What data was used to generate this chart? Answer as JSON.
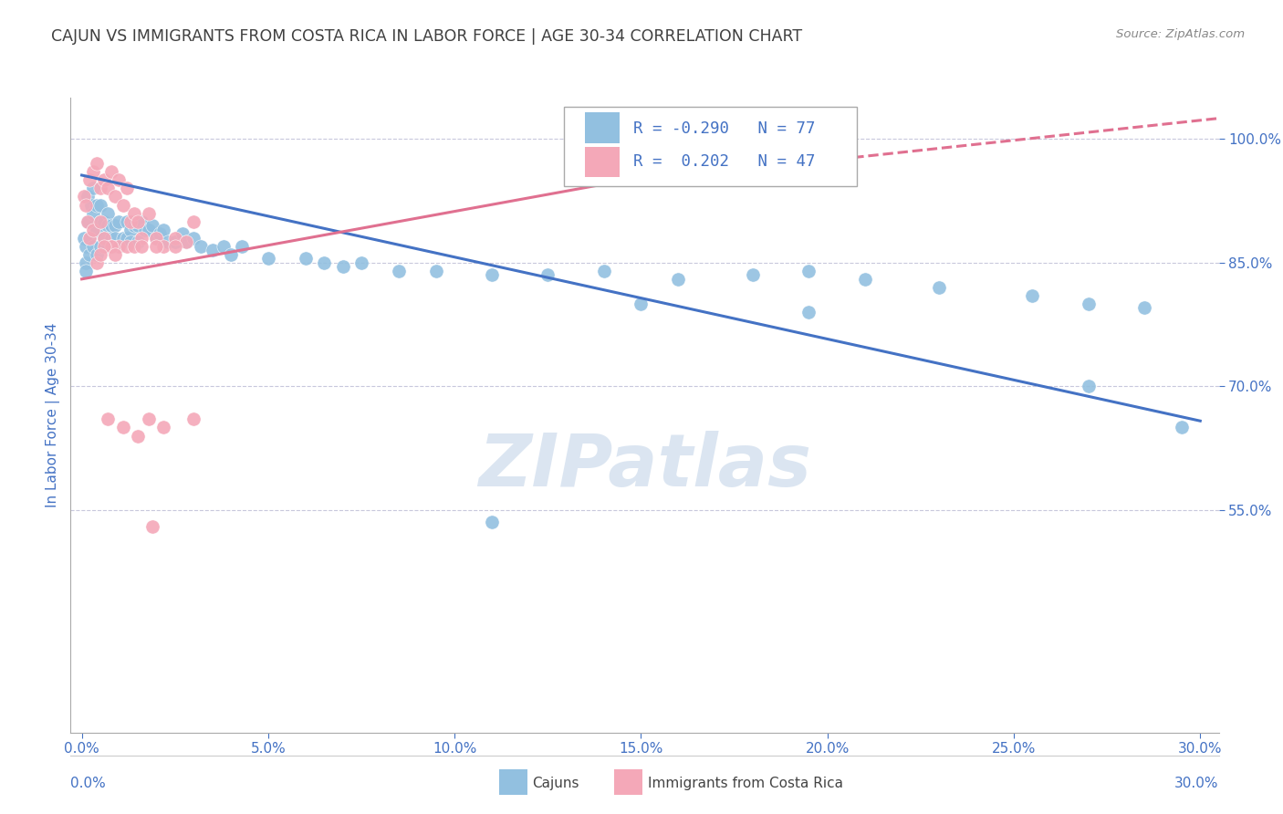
{
  "title": "CAJUN VS IMMIGRANTS FROM COSTA RICA IN LABOR FORCE | AGE 30-34 CORRELATION CHART",
  "source": "Source: ZipAtlas.com",
  "ylabel": "In Labor Force | Age 30-34",
  "xlim": [
    -0.003,
    0.305
  ],
  "ylim": [
    0.28,
    1.05
  ],
  "xticks": [
    0.0,
    0.05,
    0.1,
    0.15,
    0.2,
    0.25,
    0.3
  ],
  "xticklabels": [
    "0.0%",
    "5.0%",
    "10.0%",
    "15.0%",
    "20.0%",
    "25.0%",
    "30.0%"
  ],
  "yticks_right": [
    0.55,
    0.7,
    0.85,
    1.0
  ],
  "yticklabels_right": [
    "55.0%",
    "70.0%",
    "85.0%",
    "100.0%"
  ],
  "watermark": "ZIPatlas",
  "legend_r_blue": "-0.290",
  "legend_n_blue": "77",
  "legend_r_pink": "0.202",
  "legend_n_pink": "47",
  "blue_color": "#92c0e0",
  "pink_color": "#f4a8b8",
  "blue_line_color": "#4472c4",
  "pink_line_color": "#e07090",
  "axis_color": "#4472c4",
  "grid_color": "#c8c8dc",
  "title_color": "#404040",
  "blue_trend": [
    0.0,
    0.956,
    0.3,
    0.658
  ],
  "pink_trend_solid": [
    0.0,
    0.83,
    0.14,
    0.945
  ],
  "pink_trend_dashed": [
    0.14,
    0.945,
    0.305,
    1.025
  ],
  "cajuns_x": [
    0.0005,
    0.001,
    0.001,
    0.001,
    0.0015,
    0.0015,
    0.002,
    0.002,
    0.0025,
    0.003,
    0.003,
    0.003,
    0.004,
    0.004,
    0.004,
    0.005,
    0.005,
    0.005,
    0.006,
    0.006,
    0.007,
    0.007,
    0.007,
    0.008,
    0.008,
    0.009,
    0.009,
    0.01,
    0.01,
    0.011,
    0.012,
    0.012,
    0.013,
    0.013,
    0.014,
    0.015,
    0.015,
    0.016,
    0.017,
    0.018,
    0.019,
    0.02,
    0.021,
    0.022,
    0.023,
    0.025,
    0.027,
    0.028,
    0.03,
    0.032,
    0.035,
    0.038,
    0.04,
    0.043,
    0.05,
    0.06,
    0.065,
    0.07,
    0.075,
    0.085,
    0.095,
    0.11,
    0.125,
    0.14,
    0.16,
    0.18,
    0.195,
    0.21,
    0.23,
    0.255,
    0.27,
    0.285,
    0.295,
    0.195,
    0.15,
    0.27,
    0.11
  ],
  "cajuns_y": [
    0.88,
    0.87,
    0.85,
    0.84,
    0.93,
    0.9,
    0.88,
    0.86,
    0.92,
    0.94,
    0.91,
    0.87,
    0.92,
    0.89,
    0.86,
    0.92,
    0.9,
    0.87,
    0.9,
    0.88,
    0.91,
    0.895,
    0.87,
    0.895,
    0.88,
    0.895,
    0.88,
    0.9,
    0.87,
    0.88,
    0.9,
    0.88,
    0.89,
    0.875,
    0.895,
    0.895,
    0.875,
    0.9,
    0.89,
    0.89,
    0.895,
    0.88,
    0.885,
    0.89,
    0.875,
    0.875,
    0.885,
    0.875,
    0.88,
    0.87,
    0.865,
    0.87,
    0.86,
    0.87,
    0.855,
    0.855,
    0.85,
    0.845,
    0.85,
    0.84,
    0.84,
    0.835,
    0.835,
    0.84,
    0.83,
    0.835,
    0.84,
    0.83,
    0.82,
    0.81,
    0.8,
    0.795,
    0.65,
    0.79,
    0.8,
    0.7,
    0.535
  ],
  "costa_rica_x": [
    0.0005,
    0.001,
    0.0015,
    0.002,
    0.002,
    0.003,
    0.003,
    0.004,
    0.004,
    0.005,
    0.005,
    0.006,
    0.006,
    0.007,
    0.008,
    0.008,
    0.009,
    0.01,
    0.011,
    0.012,
    0.013,
    0.014,
    0.015,
    0.016,
    0.018,
    0.02,
    0.022,
    0.025,
    0.028,
    0.03,
    0.01,
    0.008,
    0.012,
    0.006,
    0.014,
    0.02,
    0.016,
    0.025,
    0.005,
    0.009,
    0.018,
    0.022,
    0.007,
    0.011,
    0.03,
    0.015,
    0.019
  ],
  "costa_rica_y": [
    0.93,
    0.92,
    0.9,
    0.95,
    0.88,
    0.96,
    0.89,
    0.97,
    0.85,
    0.94,
    0.9,
    0.95,
    0.88,
    0.94,
    0.96,
    0.87,
    0.93,
    0.95,
    0.92,
    0.94,
    0.9,
    0.91,
    0.9,
    0.88,
    0.91,
    0.88,
    0.87,
    0.88,
    0.875,
    0.9,
    0.87,
    0.87,
    0.87,
    0.87,
    0.87,
    0.87,
    0.87,
    0.87,
    0.86,
    0.86,
    0.66,
    0.65,
    0.66,
    0.65,
    0.66,
    0.64,
    0.53
  ]
}
